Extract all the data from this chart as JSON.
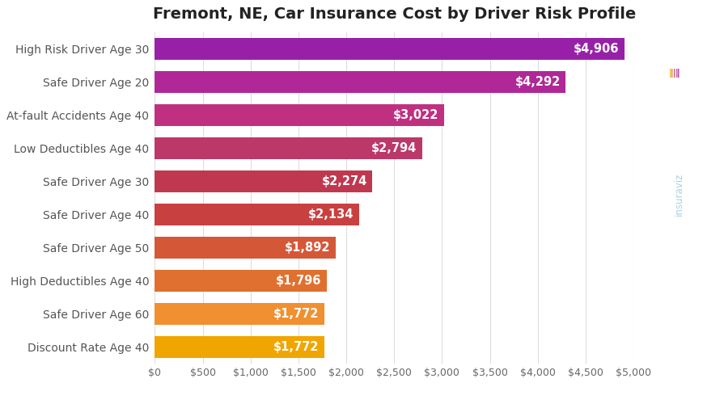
{
  "title": "Fremont, NE, Car Insurance Cost by Driver Risk Profile",
  "categories": [
    "Discount Rate Age 40",
    "Safe Driver Age 60",
    "High Deductibles Age 40",
    "Safe Driver Age 50",
    "Safe Driver Age 40",
    "Safe Driver Age 30",
    "Low Deductibles Age 40",
    "At-fault Accidents Age 40",
    "Safe Driver Age 20",
    "High Risk Driver Age 30"
  ],
  "values": [
    1772,
    1772,
    1796,
    1892,
    2134,
    2274,
    2794,
    3022,
    4292,
    4906
  ],
  "bar_colors": [
    "#F0A500",
    "#F09030",
    "#E07030",
    "#D45838",
    "#C84040",
    "#C03850",
    "#BC3868",
    "#C03080",
    "#B02898",
    "#9820A8"
  ],
  "xlim": [
    0,
    5000
  ],
  "xticks": [
    0,
    500,
    1000,
    1500,
    2000,
    2500,
    3000,
    3500,
    4000,
    4500,
    5000
  ],
  "value_label_color": "#ffffff",
  "value_label_fontsize": 10.5,
  "title_fontsize": 14,
  "background_color": "#ffffff",
  "grid_color": "#dddddd",
  "label_fontsize": 10,
  "tick_fontsize": 9,
  "watermark": "insuraviz",
  "watermark_color": "#a8d0e8"
}
